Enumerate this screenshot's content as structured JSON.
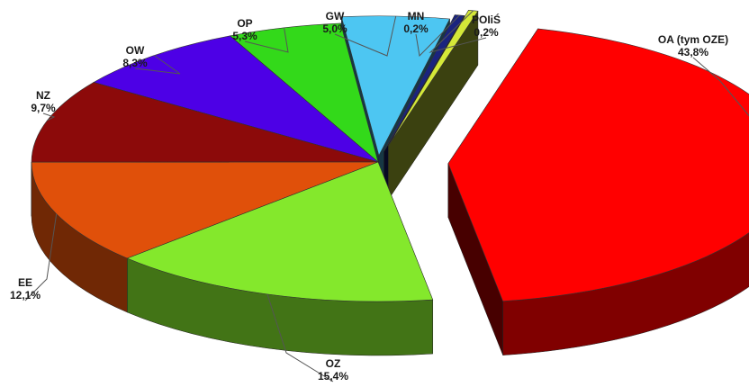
{
  "chart_data": {
    "type": "pie",
    "title": "",
    "style": "3d-exploded",
    "slices": [
      {
        "name": "OA (tym OZE)",
        "value": 43.8,
        "value_label": "43,8%",
        "color": "#ff0000"
      },
      {
        "name": "OZ",
        "value": 15.4,
        "value_label": "15,4%",
        "color": "#84e82c"
      },
      {
        "name": "EE",
        "value": 12.1,
        "value_label": "12,1%",
        "color": "#e0500a"
      },
      {
        "name": "NZ",
        "value": 9.7,
        "value_label": "9,7%",
        "color": "#8c0a0a"
      },
      {
        "name": "OW",
        "value": 8.3,
        "value_label": "8,3%",
        "color": "#4d00e6"
      },
      {
        "name": "OP",
        "value": 5.3,
        "value_label": "5,3%",
        "color": "#33d91a"
      },
      {
        "name": "GW",
        "value": 5.0,
        "value_label": "5,0%",
        "color": "#4dc6f2"
      },
      {
        "name": "MN",
        "value": 0.2,
        "value_label": "0,2%",
        "color": "#1a237e"
      },
      {
        "name": "POIiŚ",
        "value": 0.2,
        "value_label": "0,2%",
        "color": "#d4e838"
      }
    ]
  }
}
